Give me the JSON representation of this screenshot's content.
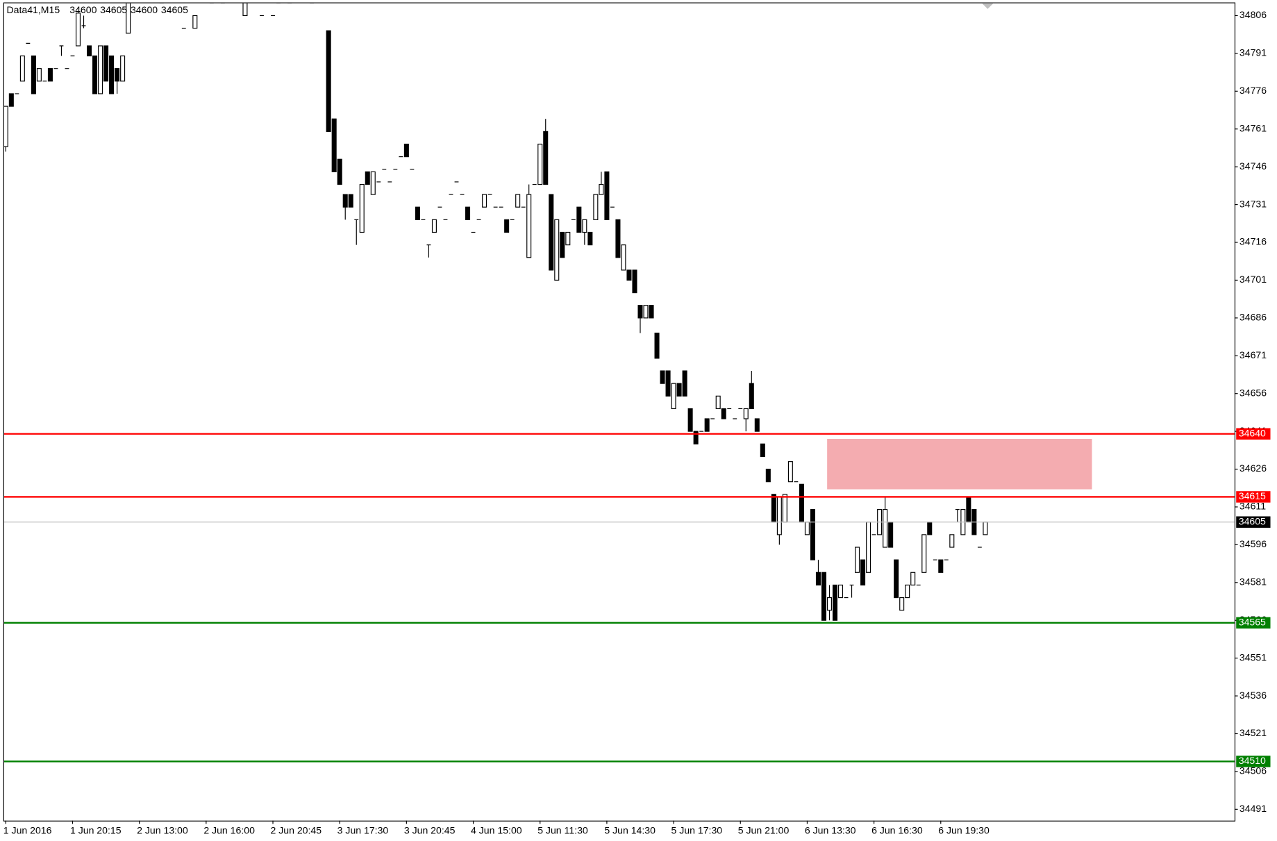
{
  "chart_data": {
    "type": "candlestick",
    "title": "Data41,M15",
    "header_values": [
      34600,
      34605,
      34600,
      34605
    ],
    "ylim": [
      34486.5,
      34810.9
    ],
    "yticks": [
      34806,
      34791,
      34776,
      34761,
      34746,
      34731,
      34716,
      34701,
      34686,
      34671,
      34656,
      34641,
      34626,
      34611,
      34596,
      34581,
      34566,
      34551,
      34536,
      34521,
      34506,
      34491
    ],
    "grid": false,
    "up_color": "#ffffff",
    "down_color": "#000000",
    "levels": [
      {
        "value": 34640,
        "color": "#ff0000"
      },
      {
        "value": 34615,
        "color": "#ff0000"
      },
      {
        "value": 34605,
        "color": "#000000",
        "line_color": "#c0c0c0"
      },
      {
        "value": 34565,
        "color": "#008000"
      },
      {
        "value": 34510,
        "color": "#008000"
      }
    ],
    "zone": {
      "ylim": [
        34618,
        34638
      ],
      "color": "#f4acb0"
    },
    "categories": [
      "1 Jun 2016",
      null,
      null,
      null,
      null,
      null,
      null,
      null,
      null,
      null,
      null,
      null,
      "1 Jun 20:15",
      null,
      null,
      null,
      null,
      null,
      null,
      null,
      null,
      null,
      null,
      null,
      "2 Jun 13:00",
      null,
      null,
      null,
      null,
      null,
      null,
      null,
      null,
      null,
      null,
      null,
      "2 Jun 16:00",
      null,
      null,
      null,
      null,
      null,
      null,
      null,
      null,
      null,
      null,
      null,
      "2 Jun 20:45",
      null,
      null,
      null,
      null,
      null,
      null,
      null,
      null,
      null,
      null,
      null,
      "3 Jun 17:30",
      null,
      null,
      null,
      null,
      null,
      null,
      null,
      null,
      null,
      null,
      null,
      "3 Jun 20:45",
      null,
      null,
      null,
      null,
      null,
      null,
      null,
      null,
      null,
      null,
      null,
      "4 Jun 15:00",
      null,
      null,
      null,
      null,
      null,
      null,
      null,
      null,
      null,
      null,
      null,
      "5 Jun 11:30",
      null,
      null,
      null,
      null,
      null,
      null,
      null,
      null,
      null,
      null,
      null,
      "5 Jun 14:30",
      null,
      null,
      null,
      null,
      null,
      null,
      null,
      null,
      null,
      null,
      null,
      "5 Jun 17:30",
      null,
      null,
      null,
      null,
      null,
      null,
      null,
      null,
      null,
      null,
      null,
      "5 Jun 21:00",
      null,
      null,
      null,
      null,
      null,
      null,
      null,
      null,
      null,
      null,
      null,
      "6 Jun 13:30",
      null,
      null,
      null,
      null,
      null,
      null,
      null,
      null,
      null,
      null,
      null,
      "6 Jun 16:30",
      null,
      null,
      null,
      null,
      null,
      null,
      null,
      null,
      null,
      null,
      null,
      "6 Jun 19:30",
      null,
      null,
      null,
      null,
      null,
      null,
      null,
      null
    ],
    "candles": [
      [
        34754,
        34770,
        34752,
        34770
      ],
      [
        34775,
        34775,
        34770,
        34770
      ],
      [
        34775,
        34775,
        34775,
        34775
      ],
      [
        34780,
        34790,
        34780,
        34790
      ],
      [
        34795,
        34795,
        34795,
        34795
      ],
      [
        34790,
        34790,
        34775,
        34775
      ],
      [
        34780,
        34785,
        34780,
        34785
      ],
      [
        34780,
        34780,
        34780,
        34780
      ],
      [
        34785,
        34785,
        34780,
        34780
      ],
      [
        34785,
        34785,
        34785,
        34785
      ],
      [
        34794,
        34794,
        34790,
        34794
      ],
      [
        34785,
        34785,
        34785,
        34785
      ],
      [
        34790,
        34790,
        34790,
        34790
      ],
      [
        34794,
        34807,
        34794,
        34807
      ],
      [
        34802,
        34806,
        34801,
        34802
      ],
      [
        34794,
        34794,
        34790,
        34790
      ],
      [
        34790,
        34790,
        34775,
        34775
      ],
      [
        34775,
        34794,
        34775,
        34794
      ],
      [
        34794,
        34794,
        34780,
        34780
      ],
      [
        34790,
        34790,
        34775,
        34775
      ],
      [
        34785,
        34785,
        34775,
        34780
      ],
      [
        34780,
        34790,
        34780,
        34790
      ],
      [
        34799,
        34811,
        34799,
        34811
      ],
      null,
      null,
      null,
      null,
      null,
      [
        34811,
        34811,
        34811,
        34811
      ],
      null,
      null,
      null,
      [
        34801,
        34801,
        34801,
        34801
      ],
      null,
      [
        34801,
        34806,
        34801,
        34806
      ],
      null,
      null,
      [
        34811,
        34811,
        34811,
        34811
      ],
      null,
      [
        34811,
        34811,
        34811,
        34811
      ],
      null,
      null,
      null,
      [
        34806,
        34811,
        34806,
        34811
      ],
      null,
      null,
      [
        34806,
        34806,
        34806,
        34806
      ],
      null,
      [
        34806,
        34806,
        34806,
        34806
      ],
      [
        34811,
        34811,
        34811,
        34811
      ],
      null,
      [
        34811,
        34811,
        34811,
        34811
      ],
      null,
      null,
      null,
      [
        34811,
        34811,
        34811,
        34811
      ],
      null,
      null,
      [
        34800,
        34800,
        34760,
        34760
      ],
      [
        34765,
        34765,
        34744,
        34744
      ],
      [
        34749,
        34749,
        34739,
        34739
      ],
      [
        34735,
        34735,
        34725,
        34730
      ],
      [
        34735,
        34735,
        34730,
        34730
      ],
      [
        34725,
        34725,
        34715,
        34725
      ],
      [
        34720,
        34739,
        34720,
        34739
      ],
      [
        34744,
        34744,
        34739,
        34739
      ],
      [
        34735,
        34744,
        34735,
        34744
      ],
      [
        34740,
        34740,
        34740,
        34740
      ],
      [
        34745,
        34745,
        34745,
        34745
      ],
      [
        34740,
        34740,
        34740,
        34740
      ],
      [
        34745,
        34745,
        34745,
        34745
      ],
      [
        34750,
        34750,
        34750,
        34750
      ],
      [
        34755,
        34755,
        34750,
        34750
      ],
      [
        34745,
        34745,
        34745,
        34745
      ],
      [
        34730,
        34730,
        34725,
        34725
      ],
      [
        34725,
        34725,
        34725,
        34725
      ],
      [
        34715,
        34715,
        34710,
        34715
      ],
      [
        34720,
        34725,
        34720,
        34725
      ],
      [
        34730,
        34730,
        34730,
        34730
      ],
      [
        34725,
        34725,
        34725,
        34725
      ],
      [
        34735,
        34735,
        34735,
        34735
      ],
      [
        34740,
        34740,
        34740,
        34740
      ],
      [
        34735,
        34735,
        34735,
        34735
      ],
      [
        34730,
        34730,
        34725,
        34725
      ],
      [
        34720,
        34720,
        34720,
        34720
      ],
      [
        34725,
        34725,
        34725,
        34725
      ],
      [
        34730,
        34735,
        34730,
        34735
      ],
      [
        34735,
        34735,
        34735,
        34735
      ],
      [
        34730,
        34730,
        34730,
        34730
      ],
      [
        34730,
        34730,
        34730,
        34730
      ],
      [
        34725,
        34725,
        34720,
        34720
      ],
      [
        34725,
        34725,
        34725,
        34725
      ],
      [
        34730,
        34735,
        34730,
        34735
      ],
      [
        34730,
        34730,
        34730,
        34730
      ],
      [
        34710,
        34739,
        34710,
        34735
      ],
      [
        34739,
        34739,
        34739,
        34739
      ],
      [
        34739,
        34755,
        34739,
        34755
      ],
      [
        34760,
        34765,
        34739,
        34739
      ],
      [
        34735,
        34735,
        34705,
        34705
      ],
      [
        34701,
        34725,
        34701,
        34725
      ],
      [
        34720,
        34720,
        34710,
        34710
      ],
      [
        34715,
        34720,
        34715,
        34720
      ],
      [
        34725,
        34725,
        34725,
        34725
      ],
      [
        34730,
        34730,
        34720,
        34720
      ],
      [
        34720,
        34725,
        34715,
        34725
      ],
      [
        34720,
        34720,
        34715,
        34715
      ],
      [
        34725,
        34735,
        34725,
        34735
      ],
      [
        34735,
        34744,
        34735,
        34739
      ],
      [
        34744,
        34744,
        34725,
        34725
      ],
      [
        34730,
        34730,
        34730,
        34730
      ],
      [
        34725,
        34725,
        34710,
        34710
      ],
      [
        34705,
        34715,
        34705,
        34715
      ],
      [
        34705,
        34705,
        34701,
        34701
      ],
      [
        34705,
        34705,
        34696,
        34696
      ],
      [
        34691,
        34691,
        34680,
        34686
      ],
      [
        34686,
        34691,
        34686,
        34691
      ],
      [
        34691,
        34691,
        34686,
        34686
      ],
      [
        34680,
        34680,
        34670,
        34670
      ],
      [
        34665,
        34665,
        34660,
        34660
      ],
      [
        34665,
        34665,
        34655,
        34655
      ],
      [
        34650,
        34660,
        34650,
        34660
      ],
      [
        34660,
        34660,
        34655,
        34655
      ],
      [
        34665,
        34665,
        34655,
        34655
      ],
      [
        34650,
        34650,
        34641,
        34641
      ],
      [
        34641,
        34641,
        34636,
        34636
      ],
      [
        34641,
        34641,
        34641,
        34641
      ],
      [
        34646,
        34646,
        34641,
        34641
      ],
      [
        34646,
        34646,
        34646,
        34646
      ],
      [
        34650,
        34655,
        34650,
        34655
      ],
      [
        34650,
        34650,
        34646,
        34646
      ],
      [
        34650,
        34650,
        34650,
        34650
      ],
      [
        34646,
        34646,
        34646,
        34646
      ],
      [
        34650,
        34650,
        34650,
        34650
      ],
      [
        34646,
        34650,
        34641,
        34650
      ],
      [
        34660,
        34665,
        34650,
        34650
      ],
      [
        34646,
        34646,
        34641,
        34641
      ],
      [
        34636,
        34636,
        34631,
        34631
      ],
      [
        34626,
        34626,
        34621,
        34621
      ],
      [
        34616,
        34616,
        34605,
        34605
      ],
      [
        34600,
        34615,
        34596,
        34615
      ],
      [
        34605,
        34616,
        34605,
        34616
      ],
      [
        34621,
        34629,
        34621,
        34629
      ],
      [
        34621,
        34621,
        34621,
        34621
      ],
      [
        34620,
        34620,
        34605,
        34605
      ],
      [
        34600,
        34605,
        34600,
        34605
      ],
      [
        34610,
        34610,
        34590,
        34590
      ],
      [
        34585,
        34590,
        34580,
        34580
      ],
      [
        34585,
        34585,
        34566,
        34566
      ],
      [
        34570,
        34580,
        34566,
        34575
      ],
      [
        34580,
        34580,
        34566,
        34566
      ],
      [
        34575,
        34580,
        34575,
        34580
      ],
      [
        34575,
        34575,
        34575,
        34575
      ],
      [
        34580,
        34580,
        34575,
        34580
      ],
      [
        34585,
        34595,
        34585,
        34595
      ],
      [
        34590,
        34590,
        34580,
        34580
      ],
      [
        34585,
        34605,
        34585,
        34605
      ],
      [
        34600,
        34600,
        34600,
        34600
      ],
      [
        34600,
        34610,
        34600,
        34610
      ],
      [
        34595,
        34615,
        34595,
        34610
      ],
      [
        34605,
        34605,
        34595,
        34595
      ],
      [
        34590,
        34590,
        34575,
        34575
      ],
      [
        34570,
        34575,
        34570,
        34575
      ],
      [
        34575,
        34580,
        34575,
        34580
      ],
      [
        34580,
        34585,
        34580,
        34585
      ],
      [
        34580,
        34580,
        34580,
        34580
      ],
      [
        34585,
        34600,
        34585,
        34600
      ],
      [
        34605,
        34605,
        34600,
        34600
      ],
      [
        34590,
        34590,
        34590,
        34590
      ],
      [
        34590,
        34590,
        34585,
        34585
      ],
      [
        34590,
        34590,
        34590,
        34590
      ],
      [
        34595,
        34600,
        34595,
        34600
      ],
      [
        34610,
        34610,
        34605,
        34610
      ],
      [
        34600,
        34610,
        34600,
        34610
      ],
      [
        34615,
        34615,
        34605,
        34605
      ],
      [
        34610,
        34610,
        34600,
        34600
      ],
      [
        34595,
        34595,
        34595,
        34595
      ],
      [
        34600,
        34605,
        34600,
        34605
      ]
    ]
  }
}
